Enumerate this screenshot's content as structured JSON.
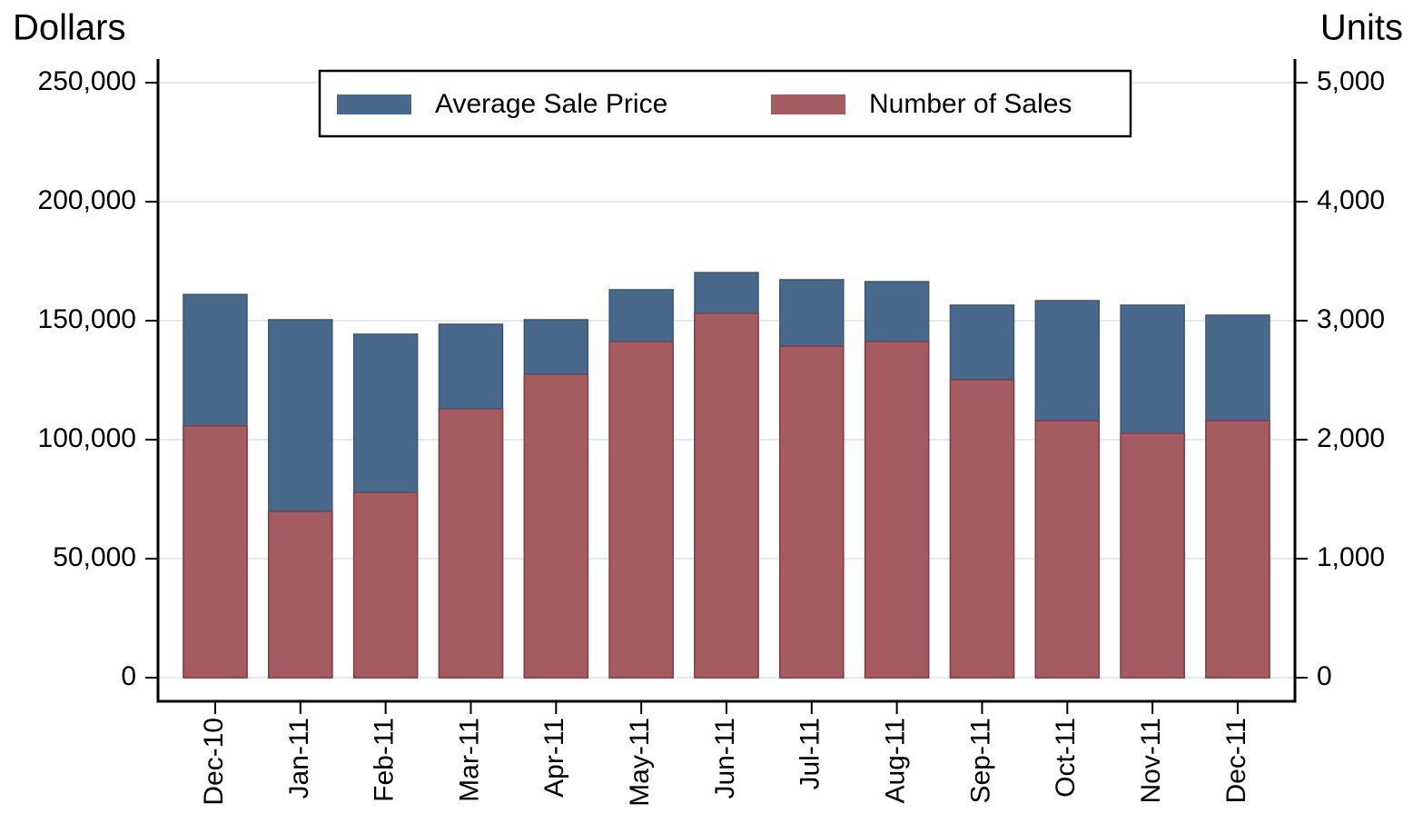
{
  "chart_data": {
    "type": "bar",
    "y_axis_label": "Dollars",
    "y2_axis_label": "Units",
    "categories": [
      "Dec-10",
      "Jan-11",
      "Feb-11",
      "Mar-11",
      "Apr-11",
      "May-11",
      "Jun-11",
      "Jul-11",
      "Aug-11",
      "Sep-11",
      "Oct-11",
      "Nov-11",
      "Dec-11"
    ],
    "series": [
      {
        "name": "Average Sale Price",
        "color": "#48698b",
        "values": [
          161000,
          150400,
          144300,
          148500,
          150400,
          163000,
          170200,
          167200,
          166400,
          156500,
          158400,
          156500,
          152300
        ]
      },
      {
        "name": "Number of Sales",
        "color": "#a55c61",
        "axis": "y2",
        "values": [
          2115,
          1397,
          1557,
          2260,
          2550,
          2824,
          3061,
          2786,
          2824,
          2504,
          2160,
          2053,
          2160
        ]
      }
    ],
    "ylim": [
      0,
      250000
    ],
    "yticks": [
      0,
      {
        "value": 50000,
        "label": "50,000"
      },
      {
        "value": 100000,
        "label": "100,000"
      },
      {
        "value": 150000,
        "label": "150,000"
      },
      {
        "value": 200000,
        "label": "200,000"
      },
      {
        "value": 250000,
        "label": "250,000"
      }
    ],
    "y2lim": [
      0,
      5000
    ],
    "y2ticks": [
      0,
      {
        "value": 1000,
        "label": "1,000"
      },
      {
        "value": 2000,
        "label": "2,000"
      },
      {
        "value": 3000,
        "label": "3,000"
      },
      {
        "value": 4000,
        "label": "4,000"
      },
      {
        "value": 5000,
        "label": "5,000"
      }
    ],
    "grid": true
  }
}
